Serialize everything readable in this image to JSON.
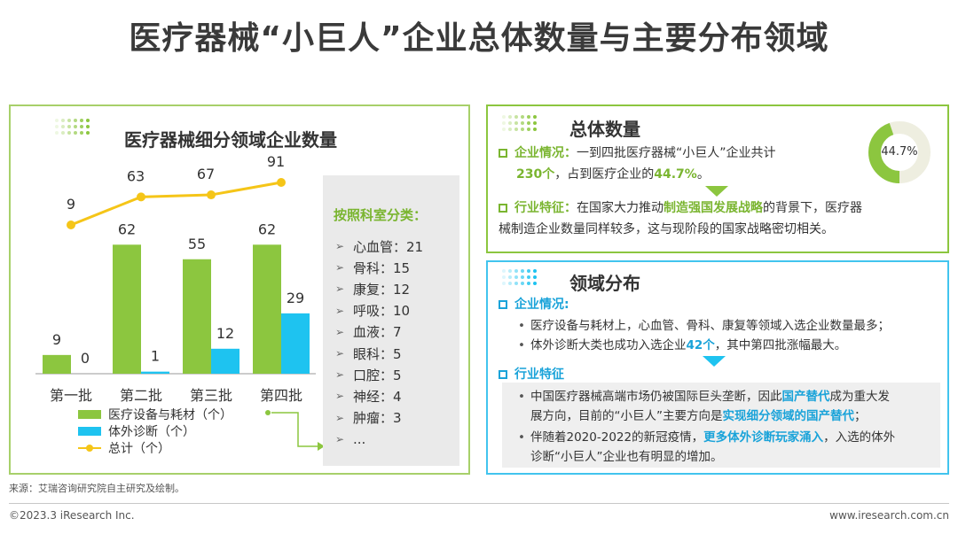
{
  "title": "医疗器械“小巨人”企业总体数量与主要分布领域",
  "left_panel": {
    "heading": "医疗器械细分领域企业数量",
    "legend": [
      "医疗设备与耗材（个）",
      "体外诊断（个）",
      "总计（个）"
    ],
    "dept": {
      "title": "按照科室分类：",
      "items": [
        "心血管：21",
        "骨科：15",
        "康复：12",
        "呼吸：10",
        "血液：7",
        "眼科：5",
        "口腔：5",
        "神经：4",
        "肿瘤：3",
        "..."
      ]
    }
  },
  "chart_data": {
    "type": "bar",
    "categories": [
      "第一批",
      "第二批",
      "第三批",
      "第四批"
    ],
    "series": [
      {
        "name": "医疗设备与耗材（个）",
        "values": [
          9,
          62,
          55,
          62
        ],
        "color": "#8cc63f"
      },
      {
        "name": "体外诊断（个）",
        "values": [
          0,
          1,
          12,
          29
        ],
        "color": "#1ec3f0"
      },
      {
        "name": "总计（个）",
        "type": "line",
        "values": [
          9,
          63,
          67,
          91
        ],
        "color": "#f5c518"
      }
    ]
  },
  "overall": {
    "heading": "总体数量",
    "ent_label": "企业情况：",
    "ent_text_1": "一到四批医疗器械“小巨人”企业共计",
    "ent_hl_1": "230个",
    "ent_text_2": "，占到医疗企业的",
    "ent_hl_2": "44.7%",
    "ent_text_3": "。",
    "ind_label": "行业特征：",
    "ind_text_1": "在国家大力推动",
    "ind_hl_1": "制造强国发展战略",
    "ind_text_2": "的背景下，医疗器",
    "ind_text_3": "械制造企业数量同样较多，这与现阶段的国家战略密切相关。",
    "donut_label": "44.7%",
    "donut_fraction": 0.447
  },
  "domain": {
    "heading": "领域分布",
    "ent_label": "企业情况:",
    "b1": "医疗设备与耗材上，心血管、骨科、康复等领域入选企业数量最多；",
    "b2_pre": "体外诊断大类也成功入选企业",
    "b2_hl": "42个",
    "b2_post": "，其中第四批涨幅最大。",
    "ind_label": "行业特征",
    "b3_pre": "中国医疗器械高端市场仍被国际巨头垄断，因此",
    "b3_hl": "国产替代",
    "b3_post": "成为重大发",
    "b3_line2_pre": "展方向，目前的“小巨人”主要方向是",
    "b3_line2_hl": "实现细分领域的国产替代",
    "b3_line2_post": "；",
    "b4_pre": "伴随着2020-2022的新冠疫情，",
    "b4_hl": "更多体外诊断玩家涌入",
    "b4_post": "，入选的体外",
    "b4_line2": "诊断“小巨人”企业也有明显的增加。"
  },
  "source": "来源：艾瑞咨询研究院自主研究及绘制。",
  "footer_left": "©2023.3 iResearch Inc.",
  "footer_right": "www.iresearch.com.cn"
}
